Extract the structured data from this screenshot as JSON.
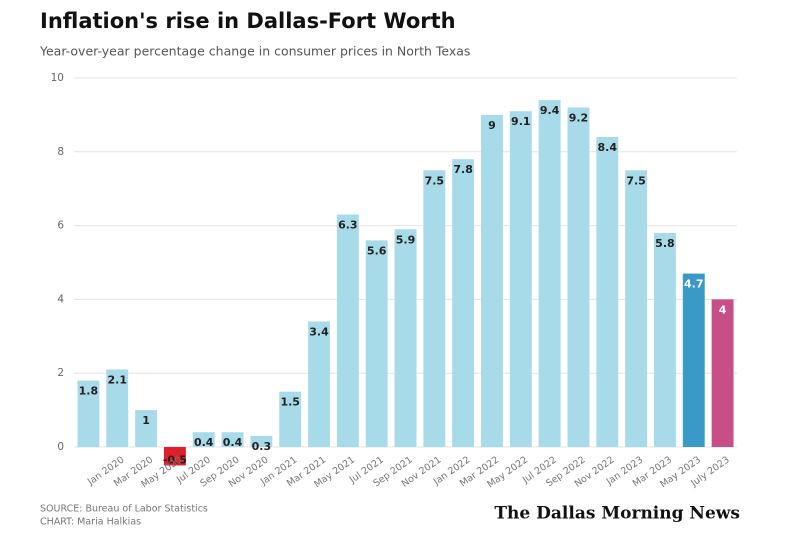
{
  "chart_data": {
    "type": "bar",
    "title": "Inflation's rise in Dallas-Fort Worth",
    "subtitle": "Year-over-year percentage change in consumer prices in North Texas",
    "categories": [
      null,
      "Jan 2020",
      "Mar 2020",
      "May 2020",
      "Jul 2020",
      "Sep 2020",
      "Nov 2020",
      "Jan 2021",
      "Mar 2021",
      "May 2021",
      "Jul 2021",
      "Sep 2021",
      "Nov 2021",
      "Jan 2022",
      "Mar 2022",
      "May 2022",
      "Jul 2022",
      "Sep 2022",
      "Nov 2022",
      "Jan 2023",
      "Mar 2023",
      "May 2023",
      "July 2023"
    ],
    "values": [
      1.8,
      2.1,
      1,
      -0.5,
      0.4,
      0.4,
      0.3,
      1.5,
      3.4,
      6.3,
      5.6,
      5.9,
      7.5,
      7.8,
      9,
      9.1,
      9.4,
      9.2,
      8.4,
      7.5,
      5.8,
      4.7,
      4
    ],
    "colors": [
      "#a8dbea",
      "#a8dbea",
      "#a8dbea",
      "#e01f2d",
      "#a8dbea",
      "#a8dbea",
      "#a8dbea",
      "#a8dbea",
      "#a8dbea",
      "#a8dbea",
      "#a8dbea",
      "#a8dbea",
      "#a8dbea",
      "#a8dbea",
      "#a8dbea",
      "#a8dbea",
      "#a8dbea",
      "#a8dbea",
      "#a8dbea",
      "#a8dbea",
      "#a8dbea",
      "#3b99c8",
      "#c74f86"
    ],
    "ylim": [
      0,
      10
    ],
    "yticks": [
      0,
      2,
      4,
      6,
      8,
      10
    ],
    "grid": true,
    "source": "SOURCE: Bureau of Labor Statistics",
    "credit": "CHART: Maria Halkias",
    "logo": "The Dallas Morning News"
  }
}
